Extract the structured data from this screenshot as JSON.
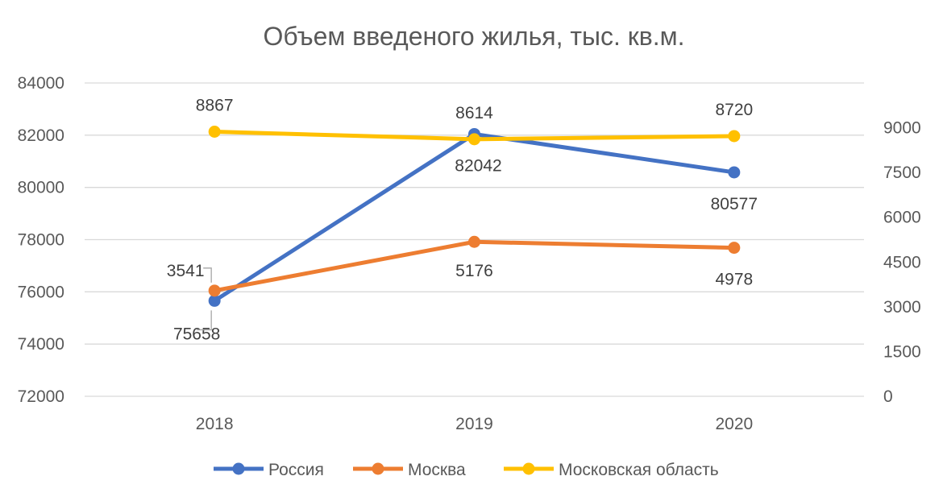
{
  "chart_data": {
    "type": "line",
    "title": "Объем введеного жилья, тыс. кв.м.",
    "categories": [
      "2018",
      "2019",
      "2020"
    ],
    "y_left": {
      "ticks": [
        "84000",
        "82000",
        "80000",
        "78000",
        "76000",
        "74000",
        "72000"
      ],
      "ylim": [
        72000,
        84000
      ]
    },
    "y_right": {
      "ticks": [
        "9000",
        "7500",
        "6000",
        "4500",
        "3000",
        "1500",
        "0"
      ],
      "ylim": [
        0,
        10500
      ]
    },
    "grid": true,
    "legend_position": "bottom",
    "series": [
      {
        "name": "Россия",
        "axis": "left",
        "color": "#4472c4",
        "values": [
          75658,
          82042,
          80577
        ],
        "labels": [
          "75658",
          "82042",
          "80577"
        ]
      },
      {
        "name": "Москва",
        "axis": "right",
        "color": "#ed7d31",
        "values": [
          3541,
          5176,
          4978
        ],
        "labels": [
          "3541",
          "5176",
          "4978"
        ]
      },
      {
        "name": "Московская область",
        "axis": "right",
        "color": "#ffc000",
        "values": [
          8867,
          8614,
          8720
        ],
        "labels": [
          "8867",
          "8614",
          "8720"
        ]
      }
    ]
  }
}
